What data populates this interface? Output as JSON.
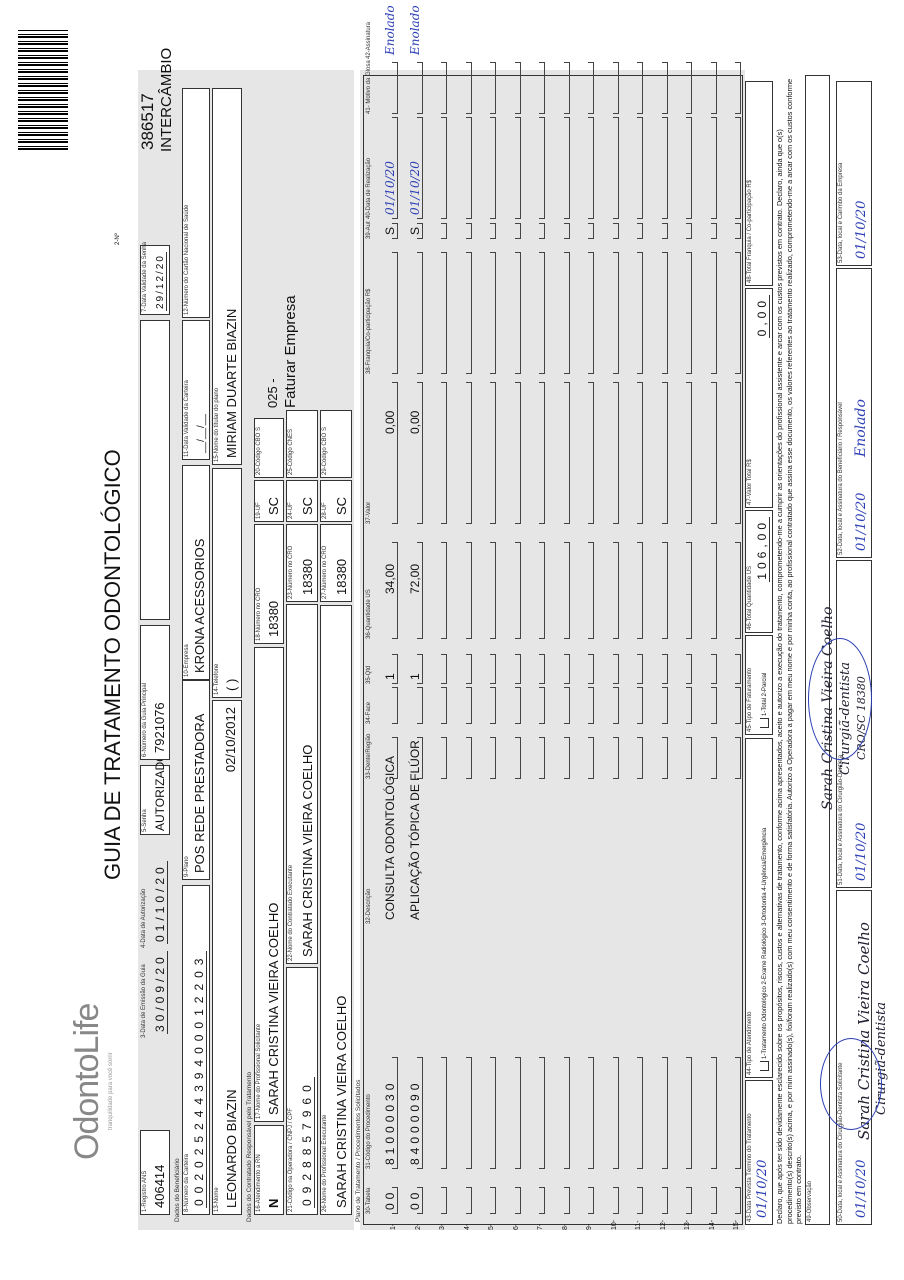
{
  "header": {
    "logo_text": "OdontoLife",
    "logo_tagline": "tranquilidade para você sorrir",
    "title": "GUIA DE TRATAMENTO ODONTOLÓGICO",
    "numero_label": "2-Nº",
    "numero": "386517",
    "intercambio": "INTERCÂMBIO"
  },
  "guia": {
    "registro_ans": {
      "label": "1-Registro ANS",
      "value": "406414"
    },
    "data_emissao": {
      "label": "3-Data de Emissão da Guia",
      "value": "30/09/20"
    },
    "data_autorizacao": {
      "label": "4-Data de Autorização",
      "value": "01/10/20"
    },
    "senha": {
      "label": "5-Senha",
      "value": "AUTORIZADO"
    },
    "guia_principal": {
      "label": "6-Número da Guia Principal",
      "value": "7921076"
    },
    "validade_senha": {
      "label": "7-Data Validade da Senha",
      "value": "29/12/20"
    }
  },
  "beneficiario": {
    "section": "Dados do Beneficiário",
    "carteira": {
      "label": "8-Número da Carteira",
      "value": "00202524439400012203"
    },
    "plano": {
      "label": "9-Plano",
      "value": "POS REDE PRESTADORA"
    },
    "empresa": {
      "label": "10-Empresa",
      "value": "KRONA ACESSORIOS"
    },
    "validade_carteira": {
      "label": "11-Data Validade da Carteira",
      "value": "__/__/__"
    },
    "cns": {
      "label": "12-Número do Cartão Nacional de Saúde",
      "value": ""
    },
    "nome": {
      "label": "13-Nome",
      "value": "LEONARDO BIAZIN"
    },
    "data_nascimento": "02/10/2012",
    "telefone": {
      "label": "14-Telefone",
      "value": "(  )"
    },
    "titular": {
      "label": "15-Nome do titular do plano",
      "value": "MIRIAM DUARTE BIAZIN"
    }
  },
  "contratado": {
    "section": "Dados do Contratado Responsável pelo Tratamento",
    "rn": {
      "label": "16-Atendimento a RN",
      "value": "N"
    },
    "solicitante": {
      "label": "17-Nome do Profissional Solicitante",
      "value": "SARAH CRISTINA VIEIRA COELHO"
    },
    "cro18": {
      "label": "18-Número no CRO",
      "value": "18380"
    },
    "uf19": {
      "label": "19-UF",
      "value": "SC"
    },
    "cbo20": {
      "label": "20-Código CBO S",
      "value": ""
    },
    "faturar_code": "025 -",
    "faturar": "Faturar Empresa",
    "codigo_operadora": {
      "label": "21-Código na Operadora / CNPJ / CPF",
      "value": "0928857960"
    },
    "executante_contratado": {
      "label": "22-Nome do Contratado Executante",
      "value": "SARAH CRISTINA VIEIRA COELHO"
    },
    "cro23": {
      "label": "23-Número no CRO",
      "value": "18380"
    },
    "uf24": {
      "label": "24-UF",
      "value": "SC"
    },
    "cnes": {
      "label": "25-Código CNES",
      "value": ""
    },
    "profissional_executante": {
      "label": "26-Nome do Profissional Executante",
      "value": "SARAH CRISTINA VIEIRA COELHO"
    },
    "cro27": {
      "label": "27-Número no CRO",
      "value": "18380"
    },
    "uf28": {
      "label": "28-UF",
      "value": "SC"
    },
    "cbo29": {
      "label": "29-Código CBO S",
      "value": ""
    }
  },
  "procedimentos": {
    "section": "Plano de Tratamento / Procedimentos Solicitados",
    "columns": [
      "30-Tabela",
      "31-Código do Procedimento",
      "32-Descrição",
      "33-Dente/Região",
      "34-Face",
      "35-Qtd",
      "36-Quantidade US",
      "37-Valor",
      "38-Franquia/Co-participação R$",
      "39-Aut",
      "40-Data de Realização",
      "41- Motivo da Glosa",
      "42-Assinatura"
    ],
    "rows": [
      {
        "n": "1-",
        "tabela": "00",
        "codigo": "81000030",
        "descricao": "CONSULTA ODONTOLÓGICA",
        "dente": "",
        "face": "",
        "qtd": "1",
        "us": "34,00",
        "valor": "0,00",
        "franquia": "",
        "aut": "S",
        "data": "01/10/20",
        "glosa": "",
        "assinatura": "Enolado"
      },
      {
        "n": "2-",
        "tabela": "00",
        "codigo": "84000090",
        "descricao": "APLICAÇÃO TÓPICA DE FLÚOR",
        "dente": "",
        "face": "",
        "qtd": "1",
        "us": "72,00",
        "valor": "0,00",
        "franquia": "",
        "aut": "S",
        "data": "01/10/20",
        "glosa": "",
        "assinatura": "Enolado"
      },
      {
        "n": "3-"
      },
      {
        "n": "4-"
      },
      {
        "n": "5-"
      },
      {
        "n": "6-"
      },
      {
        "n": "7-"
      },
      {
        "n": "8-"
      },
      {
        "n": "9-"
      },
      {
        "n": "10-"
      },
      {
        "n": "11-"
      },
      {
        "n": "12-"
      },
      {
        "n": "13-"
      },
      {
        "n": "14-"
      },
      {
        "n": "15-"
      }
    ]
  },
  "totais": {
    "data_prevista": {
      "label": "43-Data Prevista Término do Tratamento",
      "value": "01/10/20"
    },
    "tipo_atendimento": {
      "label": "44-Tipo de Atendimento",
      "options": "1-Tratamento Odontológico  2-Exame Radiológico  3-Ortodontia  4-Urgência/Emergência"
    },
    "tipo_faturamento": {
      "label": "45-Tipo de Faturamento",
      "options": "1-Total 2-Parcial"
    },
    "total_us": {
      "label": "46-Total Quantidade US",
      "value": "106,00"
    },
    "valor_total": {
      "label": "47-Valor Total R$",
      "value": "0,00"
    },
    "total_franquia": {
      "label": "48-Total Franquia / Co-participação R$",
      "value": ""
    }
  },
  "declaracao": "Declaro, que após ter sido devidamente esclarecido sobre os propósitos, riscos, custos e alternativas de tratamento, conforme acima apresentados, aceito e autorizo a execução do tratamento, comprometendo-me a cumprir as orientações do profissional assistente e arcar com os custos previstos em contrato. Declaro, ainda que o(s) procedimento(s) descrito(s) acima, e por mim assinado(s), foi/foram realizado(s) com meu consentimento e de forma satisfatória. Autorizo a Operadora a pagar em meu nome e por minha conta, ao profissional contratado que assina esse documento, os valores referentes ao tratamento realizado, comprometendo-me a arcar com os custos conforme previsto em contrato.",
  "observacao": {
    "label": "49-Observação",
    "value": ""
  },
  "assinaturas": {
    "b50": {
      "label": "50-Data, local e Assinatura do Cirurgião-Dentista Solicitante",
      "value": "01/10/20"
    },
    "b51": {
      "label": "51-Data, local e Assinatura do Cirurgião-Dentista",
      "value": "01/10/20"
    },
    "b52": {
      "label": "52-Data, local e Assinatura do Beneficiário / Responsável",
      "value": "01/10/20",
      "sig": "Enolado"
    },
    "b53": {
      "label": "53-Data, local e Carimbo da Empresa",
      "value": "01/10/20"
    },
    "stamp_name": "Sarah Cristina Vieira Coelho",
    "stamp_title": "Cirurgiã-dentista",
    "stamp_cro": "CRO/SC 18380"
  },
  "colors": {
    "ink": "#111111",
    "pen": "#2c3fb5",
    "band": "#e6e6e6"
  }
}
